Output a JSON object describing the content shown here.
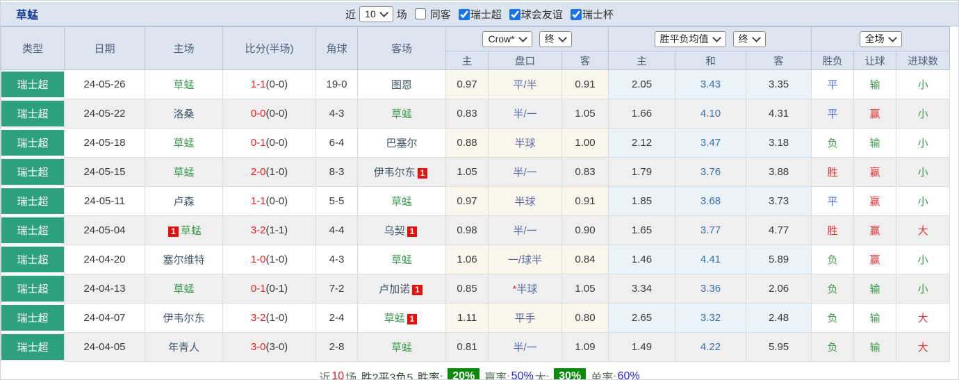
{
  "toolbar": {
    "title": "草蜢",
    "recent_label": "近",
    "recent_value": "10",
    "unit_label": "场",
    "same_away": {
      "label": "同客",
      "checked": false
    },
    "filters": [
      {
        "label": "瑞士超",
        "checked": true
      },
      {
        "label": "球会友谊",
        "checked": true
      },
      {
        "label": "瑞士杯",
        "checked": true
      }
    ]
  },
  "table": {
    "headers": {
      "type": "类型",
      "date": "日期",
      "home": "主场",
      "score": "比分(半场)",
      "corner": "角球",
      "away": "客场",
      "odds_company": "Crow*",
      "odds_stage": "终",
      "avg_label": "胜平负均值",
      "avg_stage": "终",
      "scope": "全场",
      "odds_home": "主",
      "handicap": "盘口",
      "odds_away": "客",
      "avg_home": "主",
      "avg_draw": "和",
      "avg_away": "客",
      "result": "胜负",
      "handicap_result": "让球",
      "goals": "进球数"
    },
    "rows": [
      {
        "league": "瑞士超",
        "date": "24-05-26",
        "home": {
          "name": "草蜢",
          "self": true
        },
        "score": "1-1",
        "half": "(0-0)",
        "corner": "19-0",
        "away": {
          "name": "图恩",
          "self": false
        },
        "odds": {
          "home": "0.97",
          "handicap": "平/半",
          "star": false,
          "away": "0.91"
        },
        "avg": {
          "home": "2.05",
          "draw": "3.43",
          "away": "3.35"
        },
        "result": {
          "text": "平",
          "cls": "blue"
        },
        "let": {
          "text": "输",
          "cls": "green"
        },
        "goal": {
          "text": "小",
          "cls": "green"
        }
      },
      {
        "league": "瑞士超",
        "date": "24-05-22",
        "home": {
          "name": "洛桑",
          "self": false
        },
        "score": "0-0",
        "half": "(0-0)",
        "corner": "4-3",
        "away": {
          "name": "草蜢",
          "self": true
        },
        "odds": {
          "home": "0.83",
          "handicap": "半/一",
          "star": false,
          "away": "1.05"
        },
        "avg": {
          "home": "1.66",
          "draw": "4.10",
          "away": "4.31"
        },
        "result": {
          "text": "平",
          "cls": "blue"
        },
        "let": {
          "text": "赢",
          "cls": "red"
        },
        "goal": {
          "text": "小",
          "cls": "green"
        }
      },
      {
        "league": "瑞士超",
        "date": "24-05-18",
        "home": {
          "name": "草蜢",
          "self": true
        },
        "score": "0-1",
        "half": "(0-0)",
        "corner": "6-4",
        "away": {
          "name": "巴塞尔",
          "self": false
        },
        "odds": {
          "home": "0.88",
          "handicap": "半球",
          "star": false,
          "away": "1.00"
        },
        "avg": {
          "home": "2.12",
          "draw": "3.47",
          "away": "3.18"
        },
        "result": {
          "text": "负",
          "cls": "green"
        },
        "let": {
          "text": "输",
          "cls": "green"
        },
        "goal": {
          "text": "小",
          "cls": "green"
        }
      },
      {
        "league": "瑞士超",
        "date": "24-05-15",
        "home": {
          "name": "草蜢",
          "self": true
        },
        "score": "2-0",
        "half": "(1-0)",
        "corner": "8-3",
        "away": {
          "name": "伊韦尔东",
          "self": false,
          "card": {
            "text": "1",
            "pos": "after"
          }
        },
        "odds": {
          "home": "1.05",
          "handicap": "半/一",
          "star": false,
          "away": "0.83"
        },
        "avg": {
          "home": "1.79",
          "draw": "3.76",
          "away": "3.88"
        },
        "result": {
          "text": "胜",
          "cls": "red"
        },
        "let": {
          "text": "赢",
          "cls": "red"
        },
        "goal": {
          "text": "小",
          "cls": "green"
        }
      },
      {
        "league": "瑞士超",
        "date": "24-05-11",
        "home": {
          "name": "卢森",
          "self": false
        },
        "score": "1-1",
        "half": "(0-0)",
        "corner": "5-5",
        "away": {
          "name": "草蜢",
          "self": true
        },
        "odds": {
          "home": "0.97",
          "handicap": "半球",
          "star": false,
          "away": "0.91"
        },
        "avg": {
          "home": "1.85",
          "draw": "3.68",
          "away": "3.73"
        },
        "result": {
          "text": "平",
          "cls": "blue"
        },
        "let": {
          "text": "赢",
          "cls": "red"
        },
        "goal": {
          "text": "小",
          "cls": "green"
        }
      },
      {
        "league": "瑞士超",
        "date": "24-05-04",
        "home": {
          "name": "草蜢",
          "self": true,
          "card": {
            "text": "1",
            "pos": "before"
          }
        },
        "score": "3-2",
        "half": "(1-1)",
        "corner": "4-4",
        "away": {
          "name": "乌契",
          "self": false,
          "card": {
            "text": "1",
            "pos": "after"
          }
        },
        "odds": {
          "home": "0.98",
          "handicap": "半/一",
          "star": false,
          "away": "0.90"
        },
        "avg": {
          "home": "1.65",
          "draw": "3.77",
          "away": "4.77"
        },
        "result": {
          "text": "胜",
          "cls": "red"
        },
        "let": {
          "text": "赢",
          "cls": "red"
        },
        "goal": {
          "text": "大",
          "cls": "red"
        }
      },
      {
        "league": "瑞士超",
        "date": "24-04-20",
        "home": {
          "name": "塞尔维特",
          "self": false
        },
        "score": "1-0",
        "half": "(1-0)",
        "corner": "4-3",
        "away": {
          "name": "草蜢",
          "self": true
        },
        "odds": {
          "home": "1.06",
          "handicap": "一/球半",
          "star": false,
          "away": "0.84"
        },
        "avg": {
          "home": "1.46",
          "draw": "4.41",
          "away": "5.89"
        },
        "result": {
          "text": "负",
          "cls": "green"
        },
        "let": {
          "text": "赢",
          "cls": "red"
        },
        "goal": {
          "text": "小",
          "cls": "green"
        }
      },
      {
        "league": "瑞士超",
        "date": "24-04-13",
        "home": {
          "name": "草蜢",
          "self": true
        },
        "score": "0-1",
        "half": "(0-1)",
        "corner": "7-2",
        "away": {
          "name": "卢加诺",
          "self": false,
          "card": {
            "text": "1",
            "pos": "after"
          }
        },
        "odds": {
          "home": "0.85",
          "handicap": "半球",
          "star": true,
          "away": "1.05"
        },
        "avg": {
          "home": "3.34",
          "draw": "3.36",
          "away": "2.06"
        },
        "result": {
          "text": "负",
          "cls": "green"
        },
        "let": {
          "text": "输",
          "cls": "green"
        },
        "goal": {
          "text": "小",
          "cls": "green"
        }
      },
      {
        "league": "瑞士超",
        "date": "24-04-07",
        "home": {
          "name": "伊韦尔东",
          "self": false
        },
        "score": "3-2",
        "half": "(1-0)",
        "corner": "2-4",
        "away": {
          "name": "草蜢",
          "self": true,
          "card": {
            "text": "1",
            "pos": "after"
          }
        },
        "odds": {
          "home": "1.11",
          "handicap": "平手",
          "star": false,
          "away": "0.80"
        },
        "avg": {
          "home": "2.65",
          "draw": "3.32",
          "away": "2.48"
        },
        "result": {
          "text": "负",
          "cls": "green"
        },
        "let": {
          "text": "输",
          "cls": "green"
        },
        "goal": {
          "text": "大",
          "cls": "red"
        }
      },
      {
        "league": "瑞士超",
        "date": "24-04-05",
        "home": {
          "name": "年青人",
          "self": false
        },
        "score": "3-0",
        "half": "(3-0)",
        "corner": "2-8",
        "away": {
          "name": "草蜢",
          "self": true
        },
        "odds": {
          "home": "0.81",
          "handicap": "半/一",
          "star": false,
          "away": "1.09"
        },
        "avg": {
          "home": "1.49",
          "draw": "4.22",
          "away": "5.95"
        },
        "result": {
          "text": "负",
          "cls": "green"
        },
        "let": {
          "text": "输",
          "cls": "green"
        },
        "goal": {
          "text": "大",
          "cls": "red"
        }
      }
    ]
  },
  "footer": {
    "recent_label": "近",
    "recent_count": "10",
    "unit": "场,",
    "stats": "胜2平3负5,",
    "winrate_label": " 胜率:",
    "win_rate": "20%",
    "odds_label": "赢率:",
    "odds_rate": "50%",
    "big_label": " 大:",
    "big_rate": "30%",
    "single_label": " 单率:",
    "single_rate": "60%"
  },
  "colors": {
    "league_badge": "#2da17e",
    "accent_green": "#3f9b50",
    "accent_red": "#e23535",
    "accent_blue": "#4a66d9",
    "avg_blue": "#3a70ad",
    "handicap_purple": "#5a68a8",
    "footer_badge_green": "#0a8c0a",
    "header_bg": "#dce4f0"
  }
}
